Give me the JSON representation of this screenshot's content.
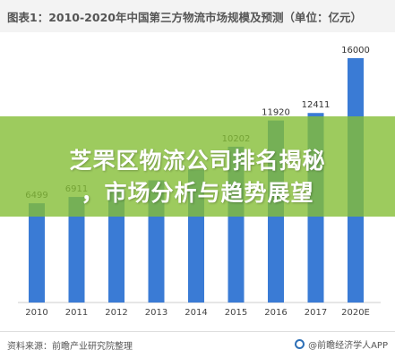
{
  "header": {
    "title": "图表1：2010-2020年中国第三方物流市场规模及预测（单位：亿元）"
  },
  "overlay": {
    "line1": "芝罘区物流公司排名揭秘",
    "line2": "，市场分析与趋势展望"
  },
  "footer": {
    "source": "资料来源：前瞻产业研究院整理",
    "brand": "@前瞻经济学人APP"
  },
  "colors": {
    "bar": "#3a7bd5",
    "banner": "#84be36",
    "title_bg": "#f3f3f3"
  },
  "chart_data": {
    "type": "bar",
    "categories": [
      "2010",
      "2011",
      "2012",
      "2013",
      "2014",
      "2015",
      "2016",
      "2017",
      "2020E"
    ],
    "values": [
      6499,
      6911,
      7500,
      8000,
      8700,
      10202,
      11920,
      12411,
      16000
    ],
    "data_labels": [
      "6499",
      "6911",
      "",
      "",
      "",
      "10202",
      "11920",
      "12411",
      "16000"
    ],
    "ylim": [
      0,
      16500
    ],
    "grid": false,
    "legend": "none"
  }
}
